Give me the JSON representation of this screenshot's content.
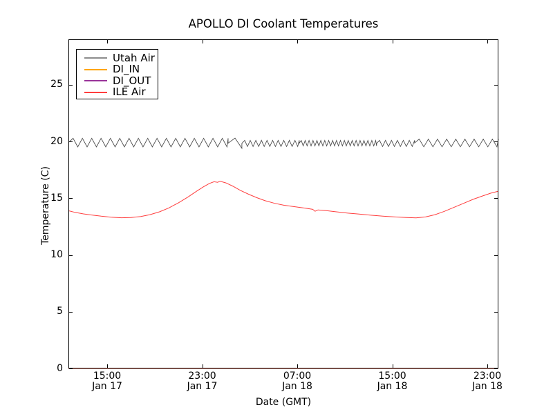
{
  "chart_data": {
    "type": "line",
    "title": "APOLLO DI Coolant Temperatures",
    "xlabel": "Date (GMT)",
    "ylabel": "Temperature (C)",
    "grid": false,
    "legend_position": "upper left",
    "x_axis": {
      "unit": "hours since Jan 17 00:00 GMT",
      "min_hours": 11.74,
      "max_hours": 47.93
    },
    "y_axis": {
      "min": 0,
      "max": 29.0
    },
    "x_ticks": [
      {
        "hours": 15,
        "time": "15:00",
        "date": "Jan 17"
      },
      {
        "hours": 23,
        "time": "23:00",
        "date": "Jan 17"
      },
      {
        "hours": 31,
        "time": "07:00",
        "date": "Jan 18"
      },
      {
        "hours": 39,
        "time": "15:00",
        "date": "Jan 18"
      },
      {
        "hours": 47,
        "time": "23:00",
        "date": "Jan 18"
      }
    ],
    "y_ticks": [
      0,
      5,
      10,
      15,
      20,
      25
    ],
    "series": [
      {
        "name": "Utah Air",
        "color": "#4d4d4d",
        "legend_color": "#8c8c8c",
        "width": 0.9,
        "description": "sawtooth oscillation around 19.9 C, variable period",
        "segments": [
          {
            "t0": 11.74,
            "t1": 25.18,
            "period": 0.785,
            "mean": 19.9,
            "amp": 0.38
          },
          {
            "t0": 25.18,
            "t1": 26.34,
            "period": 1.16,
            "mean": 19.85,
            "amp": 0.45
          },
          {
            "t0": 26.34,
            "t1": 31.17,
            "period": 0.47,
            "mean": 19.83,
            "amp": 0.27
          },
          {
            "t0": 31.17,
            "t1": 37.68,
            "period": 0.33,
            "mean": 19.85,
            "amp": 0.24
          },
          {
            "t0": 37.68,
            "t1": 40.88,
            "period": 0.5,
            "mean": 19.83,
            "amp": 0.27
          },
          {
            "t0": 40.88,
            "t1": 47.93,
            "period": 0.77,
            "mean": 19.87,
            "amp": 0.34
          }
        ]
      },
      {
        "name": "DI_IN",
        "color": "#ffa500",
        "width": 1.4,
        "points": [
          [
            11.74,
            0
          ],
          [
            47.93,
            0
          ]
        ]
      },
      {
        "name": "DI_OUT",
        "color": "#993399",
        "width": 1.1,
        "opacity": 0.85,
        "points": [
          [
            11.74,
            0
          ],
          [
            47.93,
            0
          ]
        ]
      },
      {
        "name": "ILE Air",
        "color": "#ff3d3d",
        "width": 1,
        "points": [
          [
            11.74,
            13.9
          ],
          [
            12.3,
            13.75
          ],
          [
            13.0,
            13.62
          ],
          [
            13.7,
            13.52
          ],
          [
            14.5,
            13.42
          ],
          [
            15.3,
            13.33
          ],
          [
            16.2,
            13.28
          ],
          [
            17.0,
            13.3
          ],
          [
            17.8,
            13.38
          ],
          [
            18.6,
            13.55
          ],
          [
            19.4,
            13.8
          ],
          [
            20.2,
            14.15
          ],
          [
            21.0,
            14.6
          ],
          [
            21.8,
            15.1
          ],
          [
            22.5,
            15.6
          ],
          [
            23.1,
            16.0
          ],
          [
            23.6,
            16.3
          ],
          [
            24.0,
            16.45
          ],
          [
            24.3,
            16.4
          ],
          [
            24.5,
            16.5
          ],
          [
            25.0,
            16.35
          ],
          [
            25.6,
            16.05
          ],
          [
            26.2,
            15.7
          ],
          [
            26.9,
            15.35
          ],
          [
            27.6,
            15.05
          ],
          [
            28.3,
            14.78
          ],
          [
            29.1,
            14.55
          ],
          [
            29.9,
            14.38
          ],
          [
            30.8,
            14.25
          ],
          [
            31.7,
            14.12
          ],
          [
            32.3,
            14.02
          ],
          [
            32.5,
            13.85
          ],
          [
            32.75,
            13.97
          ],
          [
            33.5,
            13.9
          ],
          [
            34.3,
            13.8
          ],
          [
            35.2,
            13.7
          ],
          [
            36.2,
            13.6
          ],
          [
            37.2,
            13.5
          ],
          [
            38.2,
            13.42
          ],
          [
            39.2,
            13.35
          ],
          [
            40.2,
            13.3
          ],
          [
            41.0,
            13.27
          ],
          [
            41.8,
            13.35
          ],
          [
            42.6,
            13.55
          ],
          [
            43.4,
            13.85
          ],
          [
            44.2,
            14.2
          ],
          [
            45.0,
            14.55
          ],
          [
            45.8,
            14.9
          ],
          [
            46.6,
            15.2
          ],
          [
            47.3,
            15.45
          ],
          [
            47.93,
            15.62
          ]
        ]
      }
    ],
    "legend_entries": [
      "Utah Air",
      "DI_IN",
      "DI_OUT",
      "ILE Air"
    ]
  }
}
